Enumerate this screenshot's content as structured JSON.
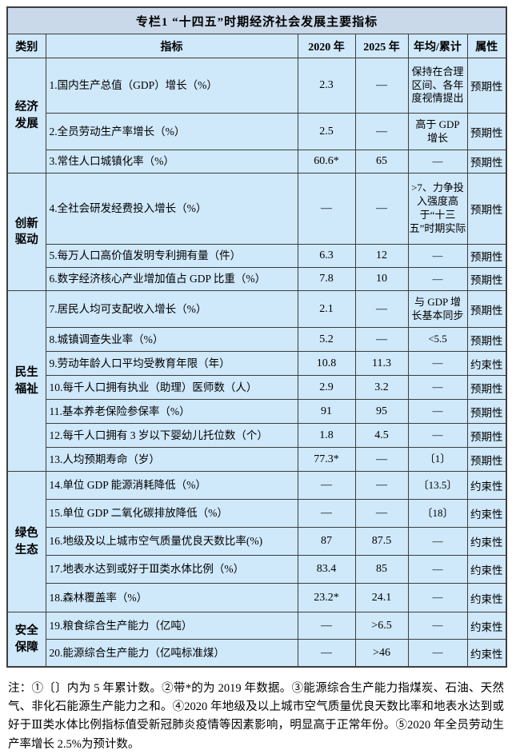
{
  "colors": {
    "title_bg": "#c9d9ea",
    "cell_bg": "#cfe8fa",
    "border": "#3d3d3d",
    "text": "#000000",
    "page_bg": "#ffffff"
  },
  "table": {
    "title": "专栏1 “十四五”时期经济社会发展主要指标",
    "columns": {
      "category": "类别",
      "indicator": "指标",
      "y2020": "2020 年",
      "y2025": "2025 年",
      "annual": "年均/累计",
      "attr": "属性"
    },
    "groups": [
      {
        "label": "经济发展",
        "rowspan": 3
      },
      {
        "label": "创新驱动",
        "rowspan": 3
      },
      {
        "label": "民生福祉",
        "rowspan": 7
      },
      {
        "label": "绿色生态",
        "rowspan": 5
      },
      {
        "label": "安全保障",
        "rowspan": 2
      }
    ],
    "rows": [
      {
        "indicator": "1.国内生产总值（GDP）增长（%）",
        "y2020": "2.3",
        "y2025": "—",
        "annual": "保持在合理区间、各年度视情提出",
        "attr": "预期性"
      },
      {
        "indicator": "2.全员劳动生产率增长（%）",
        "y2020": "2.5",
        "y2025": "—",
        "annual": "高于 GDP 增长",
        "attr": "预期性"
      },
      {
        "indicator": "3.常住人口城镇化率（%）",
        "y2020": "60.6*",
        "y2025": "65",
        "annual": "—",
        "attr": "预期性"
      },
      {
        "indicator": "4.全社会研发经费投入增长（%）",
        "y2020": "—",
        "y2025": "—",
        "annual": ">7、力争投入强度高于“十三五”时期实际",
        "attr": "预期性"
      },
      {
        "indicator": "5.每万人口高价值发明专利拥有量（件）",
        "y2020": "6.3",
        "y2025": "12",
        "annual": "—",
        "attr": "预期性"
      },
      {
        "indicator": "6.数字经济核心产业增加值占 GDP 比重（%）",
        "y2020": "7.8",
        "y2025": "10",
        "annual": "—",
        "attr": "预期性"
      },
      {
        "indicator": "7.居民人均可支配收入增长（%）",
        "y2020": "2.1",
        "y2025": "—",
        "annual": "与 GDP 增长基本同步",
        "attr": "预期性"
      },
      {
        "indicator": "8.城镇调查失业率（%）",
        "y2020": "5.2",
        "y2025": "—",
        "annual": "<5.5",
        "attr": "预期性"
      },
      {
        "indicator": "9.劳动年龄人口平均受教育年限（年）",
        "y2020": "10.8",
        "y2025": "11.3",
        "annual": "—",
        "attr": "约束性"
      },
      {
        "indicator": "10.每千人口拥有执业（助理）医师数（人）",
        "y2020": "2.9",
        "y2025": "3.2",
        "annual": "—",
        "attr": "预期性"
      },
      {
        "indicator": "11.基本养老保险参保率（%）",
        "y2020": "91",
        "y2025": "95",
        "annual": "—",
        "attr": "预期性"
      },
      {
        "indicator": "12.每千人口拥有 3 岁以下婴幼儿托位数（个）",
        "y2020": "1.8",
        "y2025": "4.5",
        "annual": "—",
        "attr": "预期性"
      },
      {
        "indicator": "13.人均预期寿命（岁）",
        "y2020": "77.3*",
        "y2025": "—",
        "annual": "〔1〕",
        "attr": "预期性"
      },
      {
        "indicator": "14.单位 GDP 能源消耗降低（%）",
        "y2020": "—",
        "y2025": "—",
        "annual": "〔13.5〕",
        "attr": "约束性"
      },
      {
        "indicator": "15.单位 GDP 二氧化碳排放降低（%）",
        "y2020": "—",
        "y2025": "—",
        "annual": "〔18〕",
        "attr": "约束性"
      },
      {
        "indicator": "16.地级及以上城市空气质量优良天数比率(%)",
        "y2020": "87",
        "y2025": "87.5",
        "annual": "—",
        "attr": "约束性"
      },
      {
        "indicator": "17.地表水达到或好于Ⅲ类水体比例（%）",
        "y2020": "83.4",
        "y2025": "85",
        "annual": "—",
        "attr": "约束性"
      },
      {
        "indicator": "18.森林覆盖率（%）",
        "y2020": "23.2*",
        "y2025": "24.1",
        "annual": "—",
        "attr": "约束性"
      },
      {
        "indicator": "19.粮食综合生产能力（亿吨）",
        "y2020": "—",
        "y2025": ">6.5",
        "annual": "—",
        "attr": "约束性"
      },
      {
        "indicator": "20.能源综合生产能力（亿吨标准煤）",
        "y2020": "—",
        "y2025": ">46",
        "annual": "—",
        "attr": "约束性"
      }
    ]
  },
  "note": "注：①〔〕内为 5 年累计数。②带*的为 2019 年数据。③能源综合生产能力指煤炭、石油、天然气、非化石能源生产能力之和。④2020 年地级及以上城市空气质量优良天数比率和地表水达到或好于Ⅲ类水体比例指标值受新冠肺炎疫情等因素影响，明显高于正常年份。⑤2020 年全员劳动生产率增长 2.5%为预计数。"
}
